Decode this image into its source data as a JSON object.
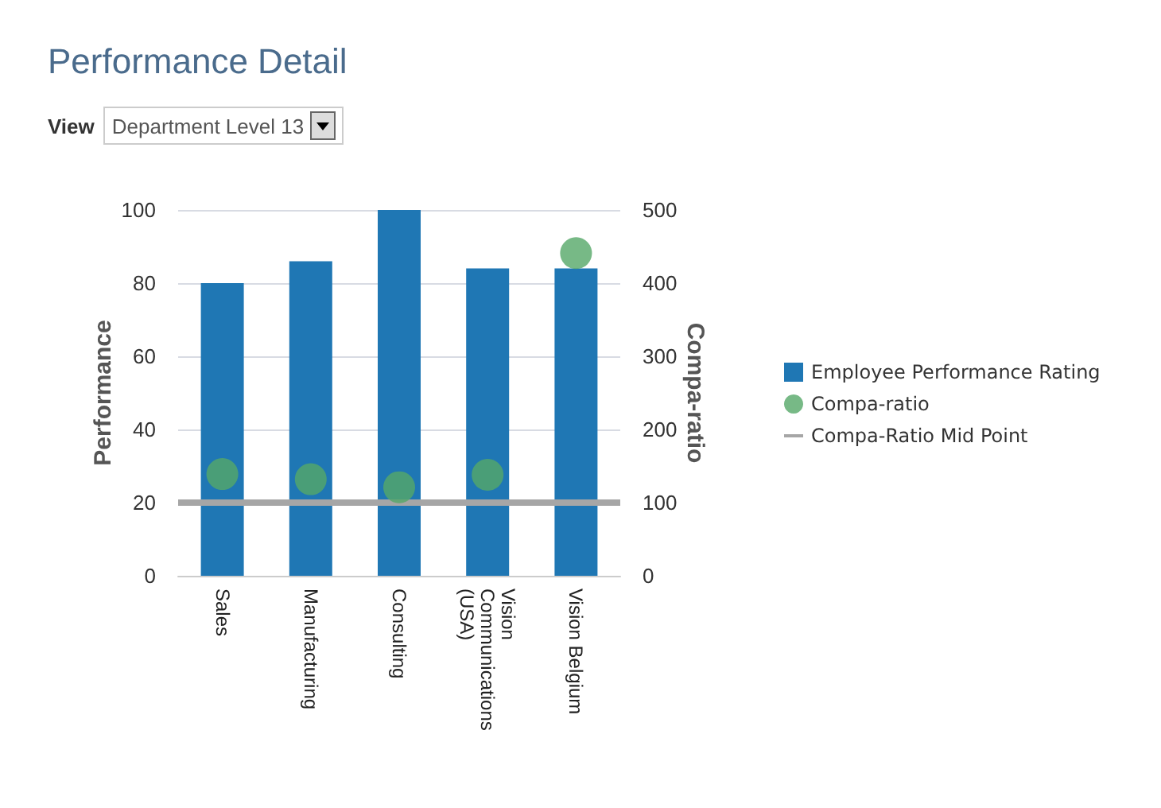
{
  "chart_data": {
    "type": "bar",
    "title": "Performance Detail",
    "annotations": [
      "View",
      "Department Level 13"
    ],
    "categories": [
      "Sales",
      "Manufacturing",
      "Consulting",
      "Vision Communications (USA)",
      "Vision Belgium"
    ],
    "series": [
      {
        "name": "Employee Performance Rating",
        "color": "#1f77b4",
        "values": [
          80,
          86,
          100,
          84,
          84
        ]
      },
      {
        "name": "Compa-ratio",
        "type": "scatter",
        "axis": "y2",
        "color": "#55a868",
        "marker": "circle",
        "values": [
          139,
          132,
          121,
          138,
          441
        ]
      }
    ],
    "ref_lines": [
      {
        "axis": "y2",
        "value": 100,
        "label": "Compa-Ratio Mid Point",
        "color": "#a6a6a6",
        "line_style": "solid"
      }
    ],
    "ylabel": "Performance",
    "y2label": "Compa-ratio",
    "ylim": [
      0,
      100
    ],
    "yticks": [
      0,
      20,
      40,
      60,
      80,
      100
    ],
    "y2lim": [
      0,
      500
    ],
    "y2ticks": [
      0,
      100,
      200,
      300,
      400,
      500
    ],
    "grid": "y",
    "legend": "right"
  }
}
